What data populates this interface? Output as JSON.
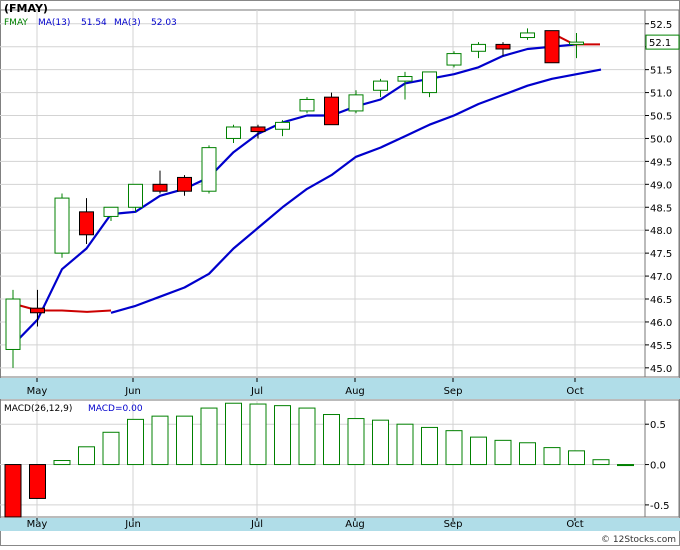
{
  "header": {
    "ticker": "(FMAY)",
    "legend": [
      {
        "label": "FMAY",
        "color": "#008000"
      },
      {
        "label": "MA(13)",
        "value": "51.54",
        "color": "#0000CC"
      },
      {
        "label": "MA(3)",
        "value": "52.03",
        "color": "#0000CC"
      }
    ]
  },
  "macd_legend": {
    "label": "MACD(26,12,9)",
    "macd_label": "MACD=0.00",
    "macd_color": "#0000CC"
  },
  "last_price_label": "52.1",
  "watermark": "© 12Stocks.com",
  "colors": {
    "up": "#008000",
    "down": "#FF0000",
    "ma_fast": "#0000CC",
    "ma_slow": "#0000CC",
    "ma_tail": "#CC0000",
    "axis_band": "#B0DDE8",
    "grid": "#D3D3D3"
  },
  "chart_data": [
    {
      "type": "candlestick",
      "name": "price",
      "x_labels": [
        "May",
        "Jun",
        "Jul",
        "Aug",
        "Sep",
        "Oct"
      ],
      "y_ticks": [
        "45.0",
        "45.5",
        "46.0",
        "46.5",
        "47.0",
        "47.5",
        "48.0",
        "48.5",
        "49.0",
        "49.5",
        "50.0",
        "50.5",
        "51.0",
        "51.5",
        "52.0",
        "52.5"
      ],
      "ylim": [
        44.8,
        52.8
      ],
      "grid": true,
      "candles": [
        {
          "open": 45.4,
          "high": 46.7,
          "low": 45.0,
          "close": 46.5
        },
        {
          "open": 46.3,
          "high": 46.7,
          "low": 45.9,
          "close": 46.2
        },
        {
          "open": 47.5,
          "high": 48.8,
          "low": 47.4,
          "close": 48.7
        },
        {
          "open": 48.4,
          "high": 48.7,
          "low": 47.7,
          "close": 47.9
        },
        {
          "open": 48.3,
          "high": 48.5,
          "low": 48.2,
          "close": 48.5
        },
        {
          "open": 48.5,
          "high": 49.0,
          "low": 48.4,
          "close": 49.0
        },
        {
          "open": 49.0,
          "high": 49.3,
          "low": 48.8,
          "close": 48.85
        },
        {
          "open": 49.15,
          "high": 49.2,
          "low": 48.75,
          "close": 48.85
        },
        {
          "open": 48.85,
          "high": 49.85,
          "low": 48.8,
          "close": 49.8
        },
        {
          "open": 50.0,
          "high": 50.3,
          "low": 49.9,
          "close": 50.25
        },
        {
          "open": 50.25,
          "high": 50.3,
          "low": 50.0,
          "close": 50.15
        },
        {
          "open": 50.2,
          "high": 50.4,
          "low": 50.05,
          "close": 50.35
        },
        {
          "open": 50.6,
          "high": 50.9,
          "low": 50.55,
          "close": 50.85
        },
        {
          "open": 50.9,
          "high": 51.0,
          "low": 50.3,
          "close": 50.3
        },
        {
          "open": 50.6,
          "high": 51.05,
          "low": 50.55,
          "close": 50.95
        },
        {
          "open": 51.05,
          "high": 51.3,
          "low": 50.9,
          "close": 51.25
        },
        {
          "open": 51.25,
          "high": 51.45,
          "low": 50.85,
          "close": 51.35
        },
        {
          "open": 51.0,
          "high": 51.45,
          "low": 50.9,
          "close": 51.45
        },
        {
          "open": 51.6,
          "high": 51.9,
          "low": 51.55,
          "close": 51.85
        },
        {
          "open": 51.9,
          "high": 52.1,
          "low": 51.75,
          "close": 52.05
        },
        {
          "open": 52.05,
          "high": 52.1,
          "low": 51.8,
          "close": 51.95
        },
        {
          "open": 52.2,
          "high": 52.4,
          "low": 52.15,
          "close": 52.3
        },
        {
          "open": 52.35,
          "high": 52.35,
          "low": 51.65,
          "close": 51.65
        },
        {
          "open": 52.05,
          "high": 52.3,
          "low": 51.75,
          "close": 52.1
        }
      ],
      "ma_slow": [
        45.5,
        46.05,
        47.15,
        47.6,
        48.35,
        48.4,
        48.75,
        48.9,
        49.15,
        49.7,
        50.1,
        50.35,
        50.5,
        50.5,
        50.7,
        50.85,
        51.2,
        51.3,
        51.4,
        51.55,
        51.8,
        51.95,
        52.0,
        52.05
      ],
      "ma_fast": [
        null,
        null,
        null,
        null,
        46.2,
        46.35,
        46.55,
        46.75,
        47.05,
        47.6,
        48.05,
        48.5,
        48.9,
        49.2,
        49.6,
        49.8,
        50.05,
        50.3,
        50.5,
        50.75,
        50.95,
        51.15,
        51.3,
        51.4,
        51.5
      ],
      "ma_tail_start": [
        46.4,
        46.25,
        46.25,
        null,
        46.22,
        46.25
      ],
      "ma_tail_end": [
        52.2,
        52.25,
        52.05,
        52.05
      ]
    },
    {
      "type": "bar",
      "name": "macd",
      "x_labels": [
        "May",
        "Jun",
        "Jul",
        "Aug",
        "Sep",
        "Oct"
      ],
      "y_ticks": [
        "-0.5",
        "0.0",
        "0.5"
      ],
      "ylim": [
        -0.65,
        0.8
      ],
      "values": [
        -0.65,
        -0.42,
        0.05,
        0.22,
        0.4,
        0.56,
        0.6,
        0.6,
        0.7,
        0.76,
        0.75,
        0.73,
        0.7,
        0.62,
        0.57,
        0.55,
        0.5,
        0.46,
        0.42,
        0.34,
        0.3,
        0.27,
        0.21,
        0.17,
        0.06,
        0.0
      ]
    }
  ]
}
